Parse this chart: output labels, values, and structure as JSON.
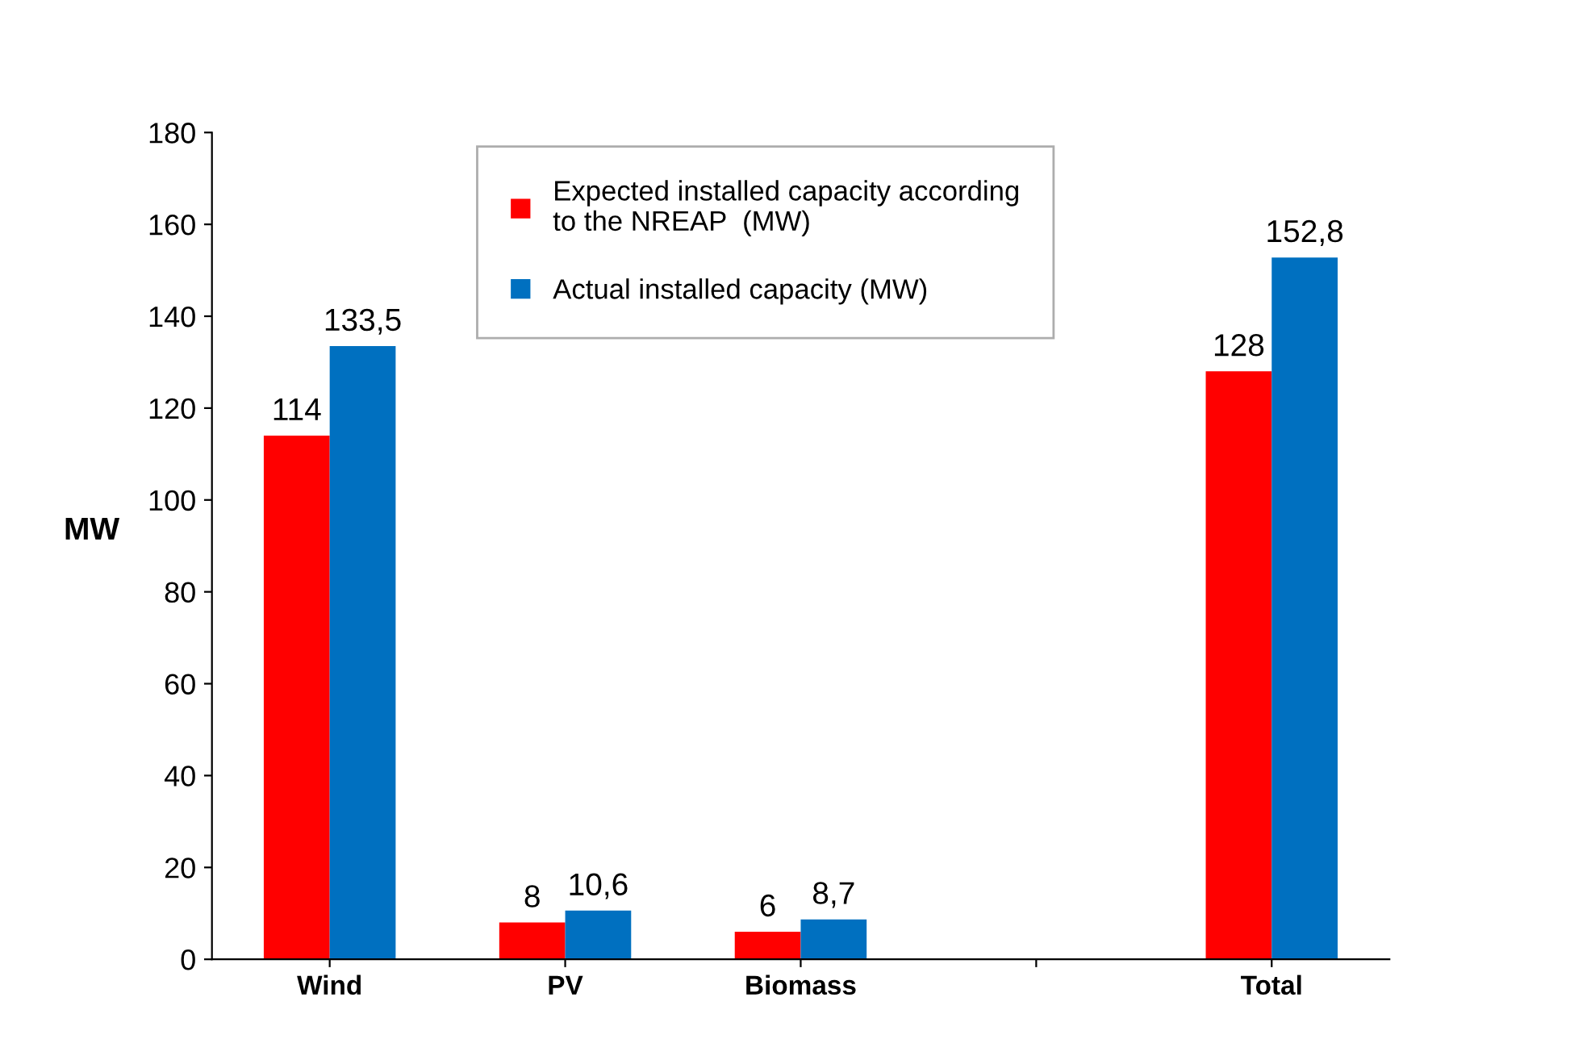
{
  "chart_data": {
    "type": "bar",
    "ylabel": "MW",
    "categories": [
      "Wind",
      "PV",
      "Biomass",
      null,
      "Total"
    ],
    "series": [
      {
        "name": "Expected installed capacity according to the NREAP  (MW)",
        "color": "#ff0000",
        "values": [
          114,
          8,
          6,
          null,
          128
        ],
        "value_labels": [
          "114",
          "8",
          "6",
          null,
          "128"
        ]
      },
      {
        "name": "Actual installed capacity (MW)",
        "color": "#0070c0",
        "values": [
          133.5,
          10.6,
          8.7,
          null,
          152.8
        ],
        "value_labels": [
          "133,5",
          "10,6",
          "8,7",
          null,
          "152,8"
        ]
      }
    ],
    "ylim": [
      0,
      180
    ],
    "yticks": [
      0,
      20,
      40,
      60,
      80,
      100,
      120,
      140,
      160,
      180
    ],
    "grid": false,
    "legend": "top"
  }
}
